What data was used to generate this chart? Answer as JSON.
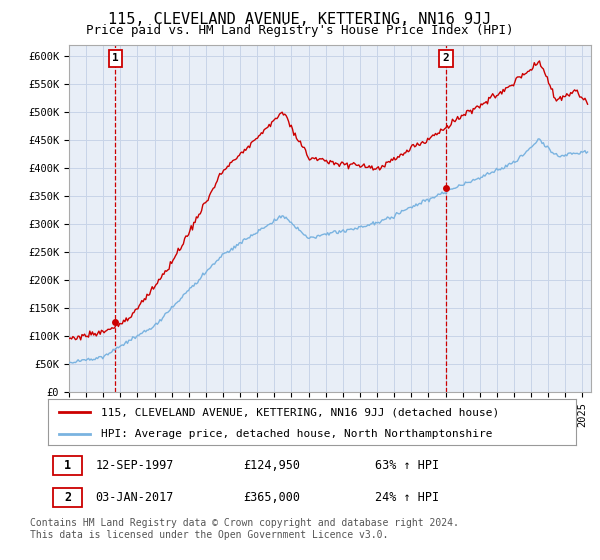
{
  "title": "115, CLEVELAND AVENUE, KETTERING, NN16 9JJ",
  "subtitle": "Price paid vs. HM Land Registry's House Price Index (HPI)",
  "ylim": [
    0,
    620000
  ],
  "xlim_start": 1995.0,
  "xlim_end": 2025.5,
  "yticks": [
    0,
    50000,
    100000,
    150000,
    200000,
    250000,
    300000,
    350000,
    400000,
    450000,
    500000,
    550000,
    600000
  ],
  "ytick_labels": [
    "£0",
    "£50K",
    "£100K",
    "£150K",
    "£200K",
    "£250K",
    "£300K",
    "£350K",
    "£400K",
    "£450K",
    "£500K",
    "£550K",
    "£600K"
  ],
  "sale1_date": 1997.7,
  "sale1_price": 124950,
  "sale2_date": 2017.02,
  "sale2_price": 365000,
  "hpi_color": "#7ab3e0",
  "price_color": "#cc0000",
  "vline_color": "#cc0000",
  "chart_bg": "#e8eef7",
  "background_color": "#ffffff",
  "grid_color": "#c8d4e8",
  "legend_label_price": "115, CLEVELAND AVENUE, KETTERING, NN16 9JJ (detached house)",
  "legend_label_hpi": "HPI: Average price, detached house, North Northamptonshire",
  "ann1_date": "12-SEP-1997",
  "ann1_price": "£124,950",
  "ann1_pct": "63% ↑ HPI",
  "ann2_date": "03-JAN-2017",
  "ann2_price": "£365,000",
  "ann2_pct": "24% ↑ HPI",
  "footer_text": "Contains HM Land Registry data © Crown copyright and database right 2024.\nThis data is licensed under the Open Government Licence v3.0.",
  "title_fontsize": 11,
  "subtitle_fontsize": 9,
  "tick_fontsize": 7.5,
  "legend_fontsize": 8,
  "annotation_fontsize": 8.5,
  "footer_fontsize": 7
}
